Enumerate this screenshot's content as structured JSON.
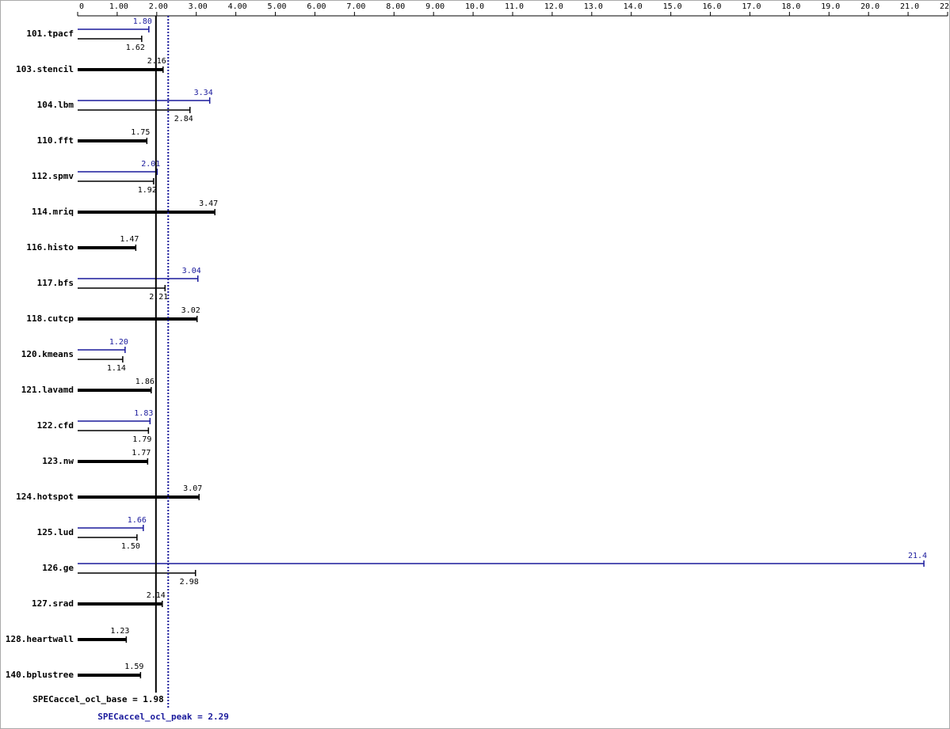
{
  "chart_data": {
    "type": "bar",
    "categories": [
      "101.tpacf",
      "103.stencil",
      "104.lbm",
      "110.fft",
      "112.spmv",
      "114.mriq",
      "116.histo",
      "117.bfs",
      "118.cutcp",
      "120.kmeans",
      "121.lavamd",
      "122.cfd",
      "123.nw",
      "124.hotspot",
      "125.lud",
      "126.ge",
      "127.srad",
      "128.heartwall",
      "140.bplustree"
    ],
    "series": [
      {
        "color": "#000000",
        "values": [
          1.62,
          2.16,
          2.84,
          1.75,
          1.92,
          3.47,
          1.47,
          2.21,
          3.02,
          1.14,
          1.86,
          1.79,
          1.77,
          3.07,
          1.5,
          2.98,
          2.14,
          1.23,
          1.59
        ],
        "value_labels": [
          "1.62",
          "2.16",
          "2.84",
          "1.75",
          "1.92",
          "3.47",
          "1.47",
          "2.21",
          "3.02",
          "1.14",
          "1.86",
          "1.79",
          "1.77",
          "3.07",
          "1.50",
          "2.98",
          "2.14",
          "1.23",
          "1.59"
        ]
      },
      {
        "color": "#1a1a9c",
        "values": [
          1.8,
          null,
          3.34,
          null,
          2.01,
          null,
          null,
          3.04,
          null,
          1.2,
          null,
          1.83,
          null,
          null,
          1.66,
          21.4,
          null,
          null,
          null
        ],
        "value_labels": [
          "1.80",
          null,
          "3.34",
          null,
          "2.01",
          null,
          null,
          "3.04",
          null,
          "1.20",
          null,
          "1.83",
          null,
          null,
          "1.66",
          "21.4",
          null,
          null,
          null
        ]
      }
    ],
    "xlim": [
      0,
      22
    ],
    "xticks": [
      0,
      {
        "value": 1,
        "label": "1.00"
      },
      {
        "value": 2,
        "label": "2.00"
      },
      {
        "value": 3,
        "label": "3.00"
      },
      {
        "value": 4,
        "label": "4.00"
      },
      {
        "value": 5,
        "label": "5.00"
      },
      {
        "value": 6,
        "label": "6.00"
      },
      {
        "value": 7,
        "label": "7.00"
      },
      {
        "value": 8,
        "label": "8.00"
      },
      {
        "value": 9,
        "label": "9.00"
      },
      {
        "value": 10,
        "label": "10.0"
      },
      {
        "value": 11,
        "label": "11.0"
      },
      {
        "value": 12,
        "label": "12.0"
      },
      {
        "value": 13,
        "label": "13.0"
      },
      {
        "value": 14,
        "label": "14.0"
      },
      {
        "value": 15,
        "label": "15.0"
      },
      {
        "value": 16,
        "label": "16.0"
      },
      {
        "value": 17,
        "label": "17.0"
      },
      {
        "value": 18,
        "label": "18.0"
      },
      {
        "value": 19,
        "label": "19.0"
      },
      {
        "value": 20,
        "label": "20.0"
      },
      {
        "value": 21,
        "label": "21.0"
      },
      {
        "value": 22,
        "label": "22.0"
      }
    ],
    "base_mean": {
      "value": 1.98,
      "label": "SPECaccel_ocl_base = 1.98"
    },
    "peak_mean": {
      "value": 2.29,
      "label": "SPECaccel_ocl_peak = 2.29"
    }
  }
}
